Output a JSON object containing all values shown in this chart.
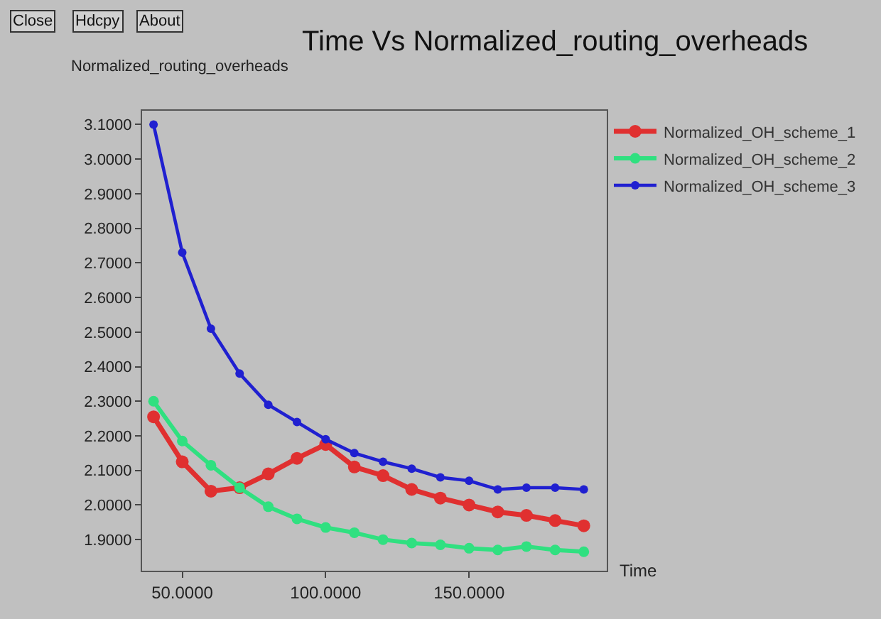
{
  "chart_data": {
    "type": "line",
    "title": "Time Vs Normalized_routing_overheads",
    "xlabel": "Time",
    "ylabel": "Normalized_routing_overheads",
    "annotations": [
      "Close",
      "Hdcpy",
      "About"
    ],
    "x": [
      40,
      50,
      60,
      70,
      80,
      90,
      100,
      110,
      120,
      130,
      140,
      150,
      160,
      170,
      180,
      190
    ],
    "series": [
      {
        "name": "Normalized_OH_scheme_1",
        "color": "#e03030",
        "values": [
          2.255,
          2.125,
          2.04,
          2.05,
          2.09,
          2.135,
          2.175,
          2.11,
          2.085,
          2.045,
          2.02,
          2.0,
          1.98,
          1.97,
          1.955,
          1.94
        ]
      },
      {
        "name": "Normalized_OH_scheme_2",
        "color": "#30e080",
        "values": [
          2.3,
          2.185,
          2.115,
          2.05,
          1.995,
          1.96,
          1.935,
          1.92,
          1.9,
          1.89,
          1.885,
          1.875,
          1.87,
          1.88,
          1.87,
          1.865
        ]
      },
      {
        "name": "Normalized_OH_scheme_3",
        "color": "#2020d0",
        "values": [
          3.1,
          2.73,
          2.51,
          2.38,
          2.29,
          2.24,
          2.19,
          2.15,
          2.125,
          2.105,
          2.08,
          2.07,
          2.045,
          2.05,
          2.05,
          2.045
        ]
      }
    ],
    "xlim": [
      36,
      198
    ],
    "ylim": [
      1.81,
      3.14
    ],
    "xticks": [
      {
        "value": 50,
        "label": "50.0000"
      },
      {
        "value": 100,
        "label": "100.0000"
      },
      {
        "value": 150,
        "label": "150.0000"
      }
    ],
    "yticks": [
      {
        "value": 1.9,
        "label": "1.9000"
      },
      {
        "value": 2.0,
        "label": "2.0000"
      },
      {
        "value": 2.1,
        "label": "2.1000"
      },
      {
        "value": 2.2,
        "label": "2.2000"
      },
      {
        "value": 2.3,
        "label": "2.3000"
      },
      {
        "value": 2.4,
        "label": "2.4000"
      },
      {
        "value": 2.5,
        "label": "2.5000"
      },
      {
        "value": 2.6,
        "label": "2.6000"
      },
      {
        "value": 2.7,
        "label": "2.7000"
      },
      {
        "value": 2.8,
        "label": "2.8000"
      },
      {
        "value": 2.9,
        "label": "2.9000"
      },
      {
        "value": 3.0,
        "label": "3.0000"
      },
      {
        "value": 3.1,
        "label": "3.1000"
      }
    ],
    "grid": false,
    "legend": "top right",
    "marker": "circle",
    "line_style": "solid"
  }
}
